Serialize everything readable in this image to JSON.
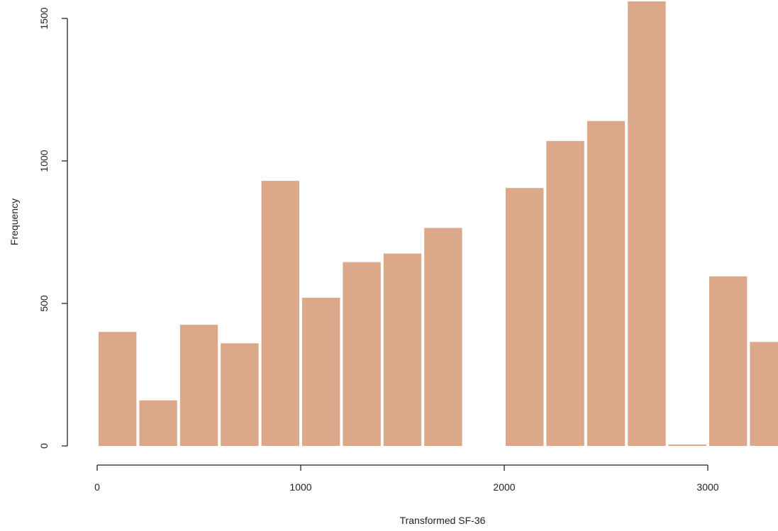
{
  "chart_data": {
    "type": "bar",
    "title": "",
    "xlabel": "Transformed SF-36",
    "ylabel": "Frequency",
    "bar_color": "#dba88a",
    "xlim": [
      0,
      3300
    ],
    "ylim": [
      0,
      1500
    ],
    "x_ticks": [
      0,
      1000,
      2000,
      3000
    ],
    "y_ticks": [
      0,
      500,
      1000,
      1500
    ],
    "grid": false,
    "bins": [
      {
        "start": 0,
        "end": 200,
        "value": 400
      },
      {
        "start": 200,
        "end": 400,
        "value": 160
      },
      {
        "start": 400,
        "end": 600,
        "value": 425
      },
      {
        "start": 600,
        "end": 800,
        "value": 360
      },
      {
        "start": 800,
        "end": 1000,
        "value": 930
      },
      {
        "start": 1000,
        "end": 1200,
        "value": 520
      },
      {
        "start": 1200,
        "end": 1400,
        "value": 645
      },
      {
        "start": 1400,
        "end": 1600,
        "value": 675
      },
      {
        "start": 1600,
        "end": 1800,
        "value": 765
      },
      {
        "start": 1800,
        "end": 2000,
        "value": 0
      },
      {
        "start": 2000,
        "end": 2200,
        "value": 905
      },
      {
        "start": 2200,
        "end": 2400,
        "value": 1070
      },
      {
        "start": 2400,
        "end": 2600,
        "value": 1140
      },
      {
        "start": 2600,
        "end": 2800,
        "value": 1560
      },
      {
        "start": 2800,
        "end": 3000,
        "value": 5
      },
      {
        "start": 3000,
        "end": 3200,
        "value": 595
      },
      {
        "start": 3200,
        "end": 3400,
        "value": 365
      }
    ]
  }
}
